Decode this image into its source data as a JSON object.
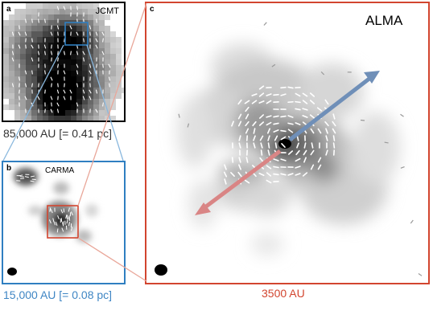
{
  "panels": {
    "a": {
      "letter": "a",
      "telescope": "JCMT",
      "scale_label": "85,000 AU [= 0.41 pc]"
    },
    "b": {
      "letter": "b",
      "telescope": "CARMA",
      "scale_label": "15,000 AU [= 0.08 pc]"
    },
    "c": {
      "letter": "c",
      "telescope": "ALMA",
      "scale_label": "3500 AU"
    }
  },
  "colors": {
    "jcmt_frame": "#000000",
    "carma_frame": "#2f7fc1",
    "alma_frame": "#d2452f",
    "zoom_line_blue": "#8ab8de",
    "zoom_line_red": "#e9a79a",
    "outflow_blue": "#6f8fb8",
    "outflow_red": "#d98585",
    "scale_blue": "#3f86c4",
    "scale_red": "#d2452f"
  }
}
